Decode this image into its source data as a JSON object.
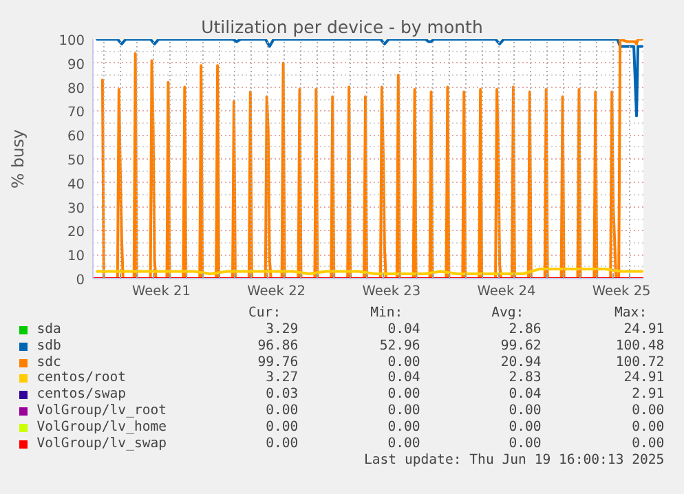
{
  "chart_data": {
    "type": "line",
    "title": "Utilization per device - by month",
    "ylabel": "% busy",
    "xlim": [
      "2025-05-17T08:00",
      "2025-06-19T20:00"
    ],
    "ylim": [
      0,
      100
    ],
    "xticks": [
      {
        "value": "2025-05-18T00:00",
        "label": null
      },
      {
        "value": "2025-05-19T00:00",
        "label": null
      },
      {
        "value": "2025-05-20T00:00",
        "label": null
      },
      {
        "value": "2025-05-21T00:00",
        "label": null
      },
      {
        "value": "2025-05-21T12:00",
        "label": "Week 21"
      },
      {
        "value": "2025-05-22T00:00",
        "label": null
      },
      {
        "value": "2025-05-23T00:00",
        "label": null
      },
      {
        "value": "2025-05-24T00:00",
        "label": null
      },
      {
        "value": "2025-05-25T00:00",
        "label": null
      },
      {
        "value": "2025-05-26T00:00",
        "label": null
      },
      {
        "value": "2025-05-27T00:00",
        "label": null
      },
      {
        "value": "2025-05-28T00:00",
        "label": null
      },
      {
        "value": "2025-05-28T12:00",
        "label": "Week 22"
      },
      {
        "value": "2025-05-29T00:00",
        "label": null
      },
      {
        "value": "2025-05-30T00:00",
        "label": null
      },
      {
        "value": "2025-05-31T00:00",
        "label": null
      },
      {
        "value": "2025-06-01T00:00",
        "label": null
      },
      {
        "value": "2025-06-02T00:00",
        "label": null
      },
      {
        "value": "2025-06-03T00:00",
        "label": null
      },
      {
        "value": "2025-06-04T00:00",
        "label": null
      },
      {
        "value": "2025-06-04T12:00",
        "label": "Week 23"
      },
      {
        "value": "2025-06-05T00:00",
        "label": null
      },
      {
        "value": "2025-06-06T00:00",
        "label": null
      },
      {
        "value": "2025-06-07T00:00",
        "label": null
      },
      {
        "value": "2025-06-08T00:00",
        "label": null
      },
      {
        "value": "2025-06-09T00:00",
        "label": null
      },
      {
        "value": "2025-06-10T00:00",
        "label": null
      },
      {
        "value": "2025-06-11T00:00",
        "label": null
      },
      {
        "value": "2025-06-11T12:00",
        "label": "Week 24"
      },
      {
        "value": "2025-06-12T00:00",
        "label": null
      },
      {
        "value": "2025-06-13T00:00",
        "label": null
      },
      {
        "value": "2025-06-14T00:00",
        "label": null
      },
      {
        "value": "2025-06-15T00:00",
        "label": null
      },
      {
        "value": "2025-06-16T00:00",
        "label": null
      },
      {
        "value": "2025-06-17T00:00",
        "label": null
      },
      {
        "value": "2025-06-18T00:00",
        "label": null
      },
      {
        "value": "2025-06-18T12:00",
        "label": "Week 25"
      },
      {
        "value": "2025-06-19T00:00",
        "label": null
      }
    ],
    "yticks": [
      0,
      {
        "value": 5,
        "label": null
      },
      10,
      {
        "value": 15,
        "label": null
      },
      20,
      {
        "value": 25,
        "label": null
      },
      30,
      {
        "value": 35,
        "label": null
      },
      40,
      {
        "value": 45,
        "label": null
      },
      50,
      {
        "value": 55,
        "label": null
      },
      60,
      {
        "value": 65,
        "label": null
      },
      70,
      {
        "value": 75,
        "label": null
      },
      80,
      {
        "value": 85,
        "label": null
      },
      90,
      {
        "value": 95,
        "label": null
      },
      100
    ],
    "grid": true,
    "legend": "bottom",
    "series": [
      {
        "name": "sda",
        "color": "#00cc00"
      },
      {
        "name": "sdb",
        "color": "#0066b3",
        "x": [
          "2025-05-17T14:00",
          "2025-05-18T20:00",
          "2025-05-19T02:00",
          "2025-05-19T08:00",
          "2025-05-20T20:00",
          "2025-05-21T02:00",
          "2025-05-21T08:00",
          "2025-05-25T20:00",
          "2025-05-26T02:00",
          "2025-05-26T08:00",
          "2025-05-27T20:00",
          "2025-05-28T02:00",
          "2025-05-28T08:00",
          "2025-06-03T20:00",
          "2025-06-04T02:00",
          "2025-06-04T08:00",
          "2025-06-06T14:00",
          "2025-06-06T18:00",
          "2025-06-06T22:00",
          "2025-06-07T02:00",
          "2025-06-10T20:00",
          "2025-06-11T02:00",
          "2025-06-11T08:00",
          "2025-06-18T06:00",
          "2025-06-18T10:00",
          "2025-06-19T06:00",
          "2025-06-19T10:00",
          "2025-06-19T12:00",
          "2025-06-19T18:00"
        ],
        "values": [
          100,
          100,
          98,
          100,
          100,
          98,
          100,
          100,
          99,
          100,
          100,
          97,
          100,
          100,
          98,
          100,
          100,
          99,
          99,
          100,
          100,
          98,
          100,
          100,
          97,
          97,
          68,
          97,
          97
        ]
      },
      {
        "name": "sdc",
        "color": "#ff8000",
        "x": [
          "2025-05-17T22:00",
          "2025-05-18T00:00",
          "2025-05-18T20:00",
          "2025-05-18T22:00",
          "2025-05-19T00:00",
          "2025-05-19T02:00",
          "2025-05-19T04:00",
          "2025-05-19T20:00",
          "2025-05-19T22:00",
          "2025-05-20T00:00",
          "2025-05-20T20:00",
          "2025-05-20T22:00",
          "2025-05-21T00:00",
          "2025-05-21T02:00",
          "2025-05-21T04:00",
          "2025-05-21T20:00",
          "2025-05-21T22:00",
          "2025-05-22T00:00",
          "2025-05-22T20:00",
          "2025-05-22T22:00",
          "2025-05-23T00:00",
          "2025-05-23T20:00",
          "2025-05-23T22:00",
          "2025-05-24T00:00",
          "2025-05-24T20:00",
          "2025-05-24T22:00",
          "2025-05-25T00:00",
          "2025-05-25T20:00",
          "2025-05-25T22:00",
          "2025-05-26T00:00",
          "2025-05-26T20:00",
          "2025-05-26T22:00",
          "2025-05-27T00:00",
          "2025-05-27T20:00",
          "2025-05-27T22:00",
          "2025-05-28T00:00",
          "2025-05-28T02:00",
          "2025-05-28T04:00",
          "2025-05-28T20:00",
          "2025-05-28T22:00",
          "2025-05-29T00:00",
          "2025-05-29T20:00",
          "2025-05-29T22:00",
          "2025-05-30T00:00",
          "2025-05-30T20:00",
          "2025-05-30T22:00",
          "2025-05-31T00:00",
          "2025-05-31T20:00",
          "2025-05-31T22:00",
          "2025-06-01T00:00",
          "2025-06-01T20:00",
          "2025-06-01T22:00",
          "2025-06-02T00:00",
          "2025-06-02T20:00",
          "2025-06-02T22:00",
          "2025-06-03T00:00",
          "2025-06-03T20:00",
          "2025-06-03T22:00",
          "2025-06-04T00:00",
          "2025-06-04T02:00",
          "2025-06-04T04:00",
          "2025-06-04T20:00",
          "2025-06-04T22:00",
          "2025-06-05T00:00",
          "2025-06-05T20:00",
          "2025-06-05T22:00",
          "2025-06-06T00:00",
          "2025-06-06T20:00",
          "2025-06-06T22:00",
          "2025-06-07T00:00",
          "2025-06-07T20:00",
          "2025-06-07T22:00",
          "2025-06-08T00:00",
          "2025-06-08T20:00",
          "2025-06-08T22:00",
          "2025-06-09T00:00",
          "2025-06-09T20:00",
          "2025-06-09T22:00",
          "2025-06-10T00:00",
          "2025-06-10T20:00",
          "2025-06-10T22:00",
          "2025-06-11T00:00",
          "2025-06-11T02:00",
          "2025-06-11T04:00",
          "2025-06-11T20:00",
          "2025-06-11T22:00",
          "2025-06-12T00:00",
          "2025-06-12T20:00",
          "2025-06-12T22:00",
          "2025-06-13T00:00",
          "2025-06-13T20:00",
          "2025-06-13T22:00",
          "2025-06-14T00:00",
          "2025-06-14T20:00",
          "2025-06-14T22:00",
          "2025-06-15T00:00",
          "2025-06-15T20:00",
          "2025-06-15T22:00",
          "2025-06-16T00:00",
          "2025-06-16T20:00",
          "2025-06-16T22:00",
          "2025-06-17T00:00",
          "2025-06-17T20:00",
          "2025-06-17T22:00",
          "2025-06-18T00:00",
          "2025-06-18T02:00",
          "2025-06-18T04:00",
          "2025-06-18T08:00",
          "2025-06-18T10:00",
          "2025-06-18T20:00",
          "2025-06-19T08:00",
          "2025-06-19T10:00",
          "2025-06-19T12:00",
          "2025-06-19T18:00"
        ],
        "values": [
          83,
          0,
          0,
          79,
          46,
          17,
          0,
          0,
          94,
          0,
          0,
          91,
          63,
          8,
          0,
          0,
          82,
          0,
          0,
          80,
          0,
          0,
          89,
          0,
          0,
          89,
          0,
          0,
          74,
          0,
          0,
          78,
          0,
          0,
          76,
          62,
          8,
          0,
          0,
          90,
          0,
          0,
          79,
          0,
          0,
          79,
          0,
          0,
          76,
          0,
          0,
          80,
          0,
          0,
          76,
          0,
          0,
          80,
          52,
          13,
          0,
          0,
          85,
          0,
          0,
          79,
          0,
          0,
          78,
          0,
          0,
          80,
          0,
          0,
          78,
          0,
          0,
          79,
          0,
          0,
          79,
          57,
          6,
          0,
          0,
          80,
          0,
          0,
          78,
          0,
          0,
          79,
          0,
          0,
          76,
          0,
          0,
          79,
          0,
          0,
          78,
          0,
          0,
          78,
          29,
          16,
          0,
          0,
          100,
          99,
          99,
          98,
          100,
          100
        ]
      },
      {
        "name": "centos/root",
        "color": "#ffcc00",
        "x": [
          "2025-05-17T14:00",
          "2025-05-18T12:00",
          "2025-05-19T12:00",
          "2025-05-20T12:00",
          "2025-05-21T12:00",
          "2025-05-22T12:00",
          "2025-05-23T12:00",
          "2025-05-24T12:00",
          "2025-05-25T12:00",
          "2025-05-26T12:00",
          "2025-05-27T12:00",
          "2025-05-28T12:00",
          "2025-05-29T12:00",
          "2025-05-30T12:00",
          "2025-05-31T12:00",
          "2025-06-01T12:00",
          "2025-06-02T12:00",
          "2025-06-03T12:00",
          "2025-06-04T12:00",
          "2025-06-05T12:00",
          "2025-06-06T12:00",
          "2025-06-07T12:00",
          "2025-06-08T12:00",
          "2025-06-09T12:00",
          "2025-06-10T12:00",
          "2025-06-11T12:00",
          "2025-06-12T12:00",
          "2025-06-13T12:00",
          "2025-06-14T12:00",
          "2025-06-15T12:00",
          "2025-06-16T12:00",
          "2025-06-17T12:00",
          "2025-06-18T12:00",
          "2025-06-19T12:00",
          "2025-06-19T18:00"
        ],
        "values": [
          3,
          3,
          3,
          3,
          3,
          3,
          3,
          2,
          3,
          3,
          3,
          3,
          3,
          2,
          3,
          3,
          3,
          2,
          2,
          2,
          2,
          3,
          2,
          2,
          2,
          2,
          2,
          4,
          4,
          4,
          4,
          4,
          3,
          3,
          3
        ]
      },
      {
        "name": "centos/swap",
        "color": "#330099"
      },
      {
        "name": "VolGroup/lv_root",
        "color": "#990099"
      },
      {
        "name": "VolGroup/lv_home",
        "color": "#ccff00"
      },
      {
        "name": "VolGroup/lv_swap",
        "color": "#ff0000",
        "x": [
          "2025-05-17T08:00",
          "2025-06-19T20:00"
        ],
        "values": [
          0,
          0
        ]
      }
    ],
    "annotations": [
      "Cur: Min: Avg: Max:",
      "3.29 0.04 2.86 24.91",
      "96.86 52.96 99.62 100.48",
      "99.76 0.00 20.94 100.72",
      "3.27 0.04 2.83 24.91",
      "0.03 0.00 0.04 2.91",
      "0.00 0.00 0.00 0.00",
      "0.00 0.00 0.00 0.00",
      "0.00 0.00 0.00 0.00",
      "Last update: Thu Jun 19 16:00:13 2025"
    ]
  }
}
